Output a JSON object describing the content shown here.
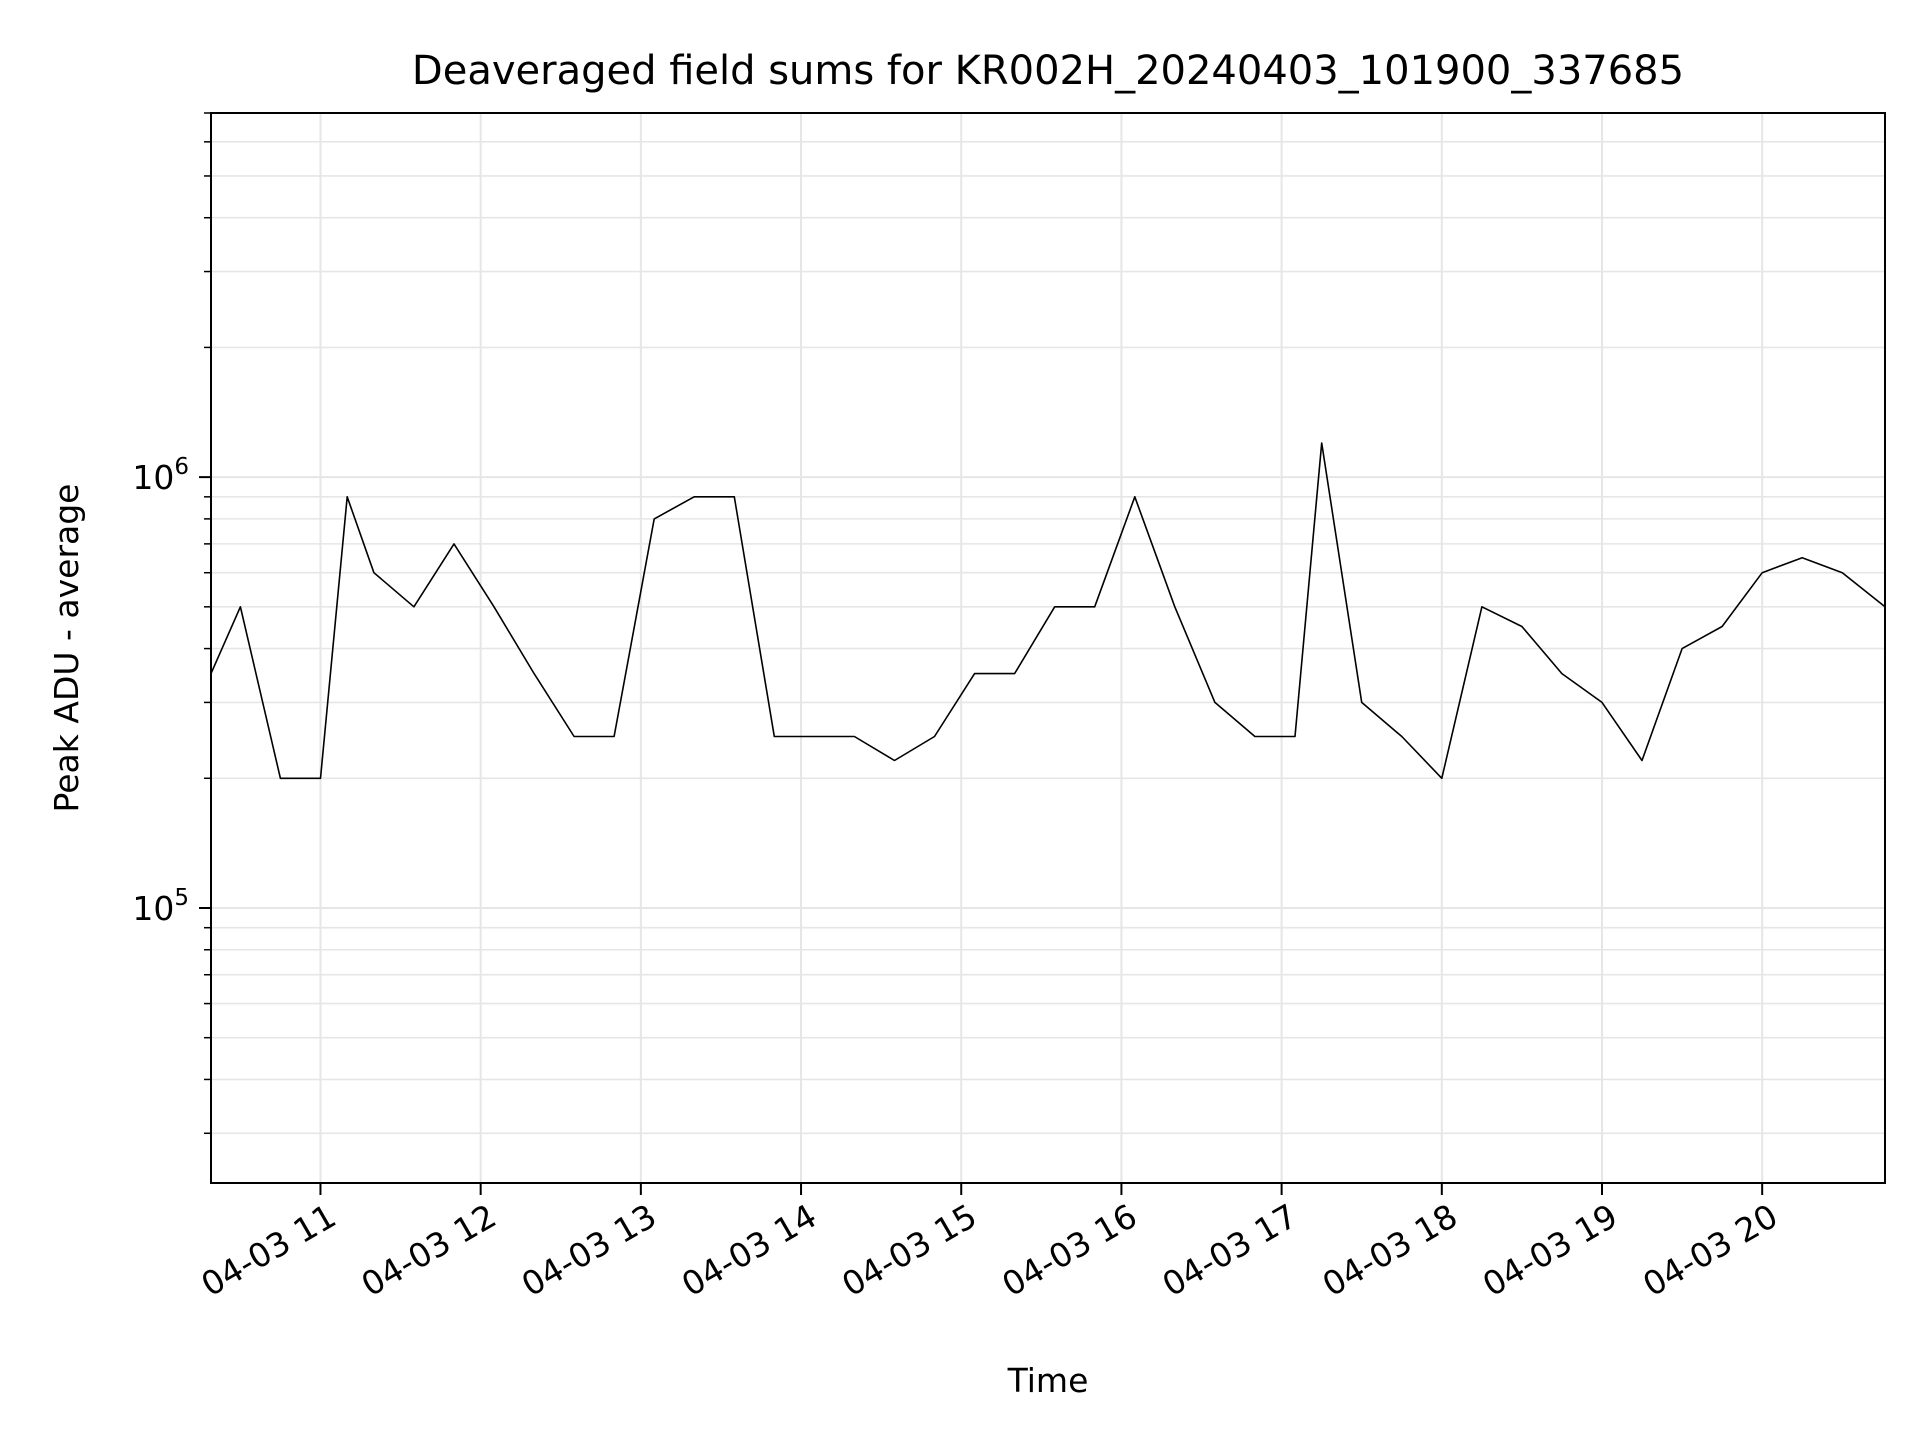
{
  "chart_data": {
    "type": "line",
    "title": "Deaveraged field sums for KR002H_20240403_101900_337685",
    "xlabel": "Time",
    "ylabel": "Peak ADU - average",
    "yscale": "log",
    "ylim": [
      23000,
      7000000
    ],
    "xlim": [
      "2024-04-03 10:19",
      "2024-04-03 20:46"
    ],
    "x_tick_labels": [
      "04-03 11",
      "04-03 12",
      "04-03 13",
      "04-03 14",
      "04-03 15",
      "04-03 16",
      "04-03 17",
      "04-03 18",
      "04-03 19",
      "04-03 20"
    ],
    "x_tick_times": [
      "2024-04-03 11:00",
      "2024-04-03 12:00",
      "2024-04-03 13:00",
      "2024-04-03 14:00",
      "2024-04-03 15:00",
      "2024-04-03 16:00",
      "2024-04-03 17:00",
      "2024-04-03 18:00",
      "2024-04-03 19:00",
      "2024-04-03 20:00"
    ],
    "y_tick_labels": [
      {
        "base": "10",
        "exp": "5",
        "value": 100000
      },
      {
        "base": "10",
        "exp": "6",
        "value": 1000000
      }
    ],
    "grid": true,
    "legend": "none",
    "line_color": "#000000",
    "grid_color": "#e6e6e6",
    "series": [
      {
        "x": [
          "2024-04-03 10:19",
          "2024-04-03 10:30",
          "2024-04-03 10:45",
          "2024-04-03 11:00",
          "2024-04-03 11:10",
          "2024-04-03 11:20",
          "2024-04-03 11:35",
          "2024-04-03 11:50",
          "2024-04-03 12:05",
          "2024-04-03 12:20",
          "2024-04-03 12:35",
          "2024-04-03 12:50",
          "2024-04-03 13:05",
          "2024-04-03 13:20",
          "2024-04-03 13:35",
          "2024-04-03 13:50",
          "2024-04-03 14:05",
          "2024-04-03 14:20",
          "2024-04-03 14:35",
          "2024-04-03 14:50",
          "2024-04-03 15:05",
          "2024-04-03 15:20",
          "2024-04-03 15:35",
          "2024-04-03 15:50",
          "2024-04-03 16:05",
          "2024-04-03 16:20",
          "2024-04-03 16:35",
          "2024-04-03 16:50",
          "2024-04-03 17:05",
          "2024-04-03 17:15",
          "2024-04-03 17:30",
          "2024-04-03 17:45",
          "2024-04-03 18:00",
          "2024-04-03 18:15",
          "2024-04-03 18:30",
          "2024-04-03 18:45",
          "2024-04-03 19:00",
          "2024-04-03 19:15",
          "2024-04-03 19:30",
          "2024-04-03 19:45",
          "2024-04-03 20:00",
          "2024-04-03 20:15",
          "2024-04-03 20:30",
          "2024-04-03 20:46"
        ],
        "values": [
          350000,
          500000,
          200000,
          200000,
          900000,
          600000,
          500000,
          700000,
          500000,
          350000,
          250000,
          250000,
          800000,
          900000,
          900000,
          250000,
          250000,
          250000,
          220000,
          250000,
          350000,
          350000,
          500000,
          500000,
          900000,
          500000,
          300000,
          250000,
          250000,
          1200000,
          300000,
          250000,
          200000,
          500000,
          450000,
          350000,
          300000,
          220000,
          400000,
          450000,
          600000,
          650000,
          600000,
          500000
        ]
      }
    ]
  }
}
